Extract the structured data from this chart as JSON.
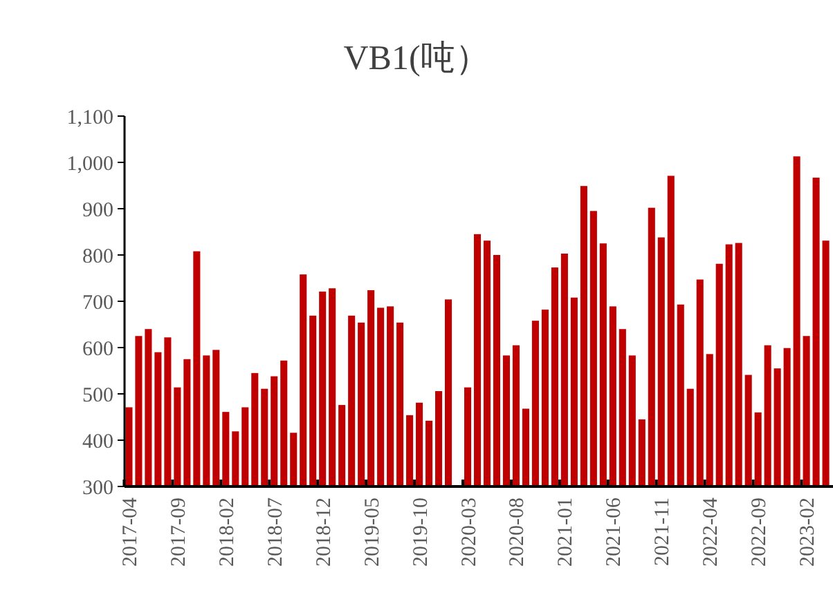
{
  "chart_data": {
    "type": "bar",
    "title": "VB1(吨）",
    "categories": [
      "2017-04",
      null,
      null,
      null,
      null,
      "2017-09",
      null,
      null,
      null,
      null,
      "2018-02",
      null,
      null,
      null,
      null,
      "2018-07",
      null,
      null,
      null,
      null,
      "2018-12",
      null,
      null,
      null,
      null,
      "2019-05",
      null,
      null,
      null,
      null,
      "2019-10",
      null,
      null,
      null,
      null,
      "2020-03",
      null,
      null,
      null,
      null,
      "2020-08",
      null,
      null,
      null,
      null,
      "2021-01",
      null,
      null,
      null,
      null,
      "2021-06",
      null,
      null,
      null,
      null,
      "2021-11",
      null,
      null,
      null,
      null,
      "2022-04",
      null,
      null,
      null,
      null,
      "2022-09",
      null,
      null,
      null,
      null,
      "2023-02",
      null,
      null
    ],
    "values": [
      471,
      625,
      640,
      590,
      622,
      514,
      575,
      808,
      583,
      595,
      461,
      419,
      471,
      545,
      511,
      538,
      572,
      416,
      758,
      669,
      721,
      728,
      476,
      669,
      654,
      724,
      686,
      689,
      654,
      454,
      481,
      442,
      506,
      704,
      null,
      514,
      845,
      831,
      800,
      583,
      605,
      468,
      658,
      682,
      773,
      803,
      708,
      949,
      895,
      825,
      689,
      640,
      583,
      445,
      902,
      838,
      971,
      693,
      511,
      747,
      586,
      781,
      823,
      826,
      541,
      460,
      605,
      555,
      599,
      1013,
      625,
      967,
      831
    ],
    "color": "#c00000",
    "ylim": [
      300,
      1100
    ],
    "yticks": [
      300,
      400,
      500,
      600,
      700,
      800,
      900,
      {
        "value": 1000,
        "label": "1,000"
      },
      {
        "value": 1100,
        "label": "1,100"
      }
    ],
    "grid": false
  }
}
